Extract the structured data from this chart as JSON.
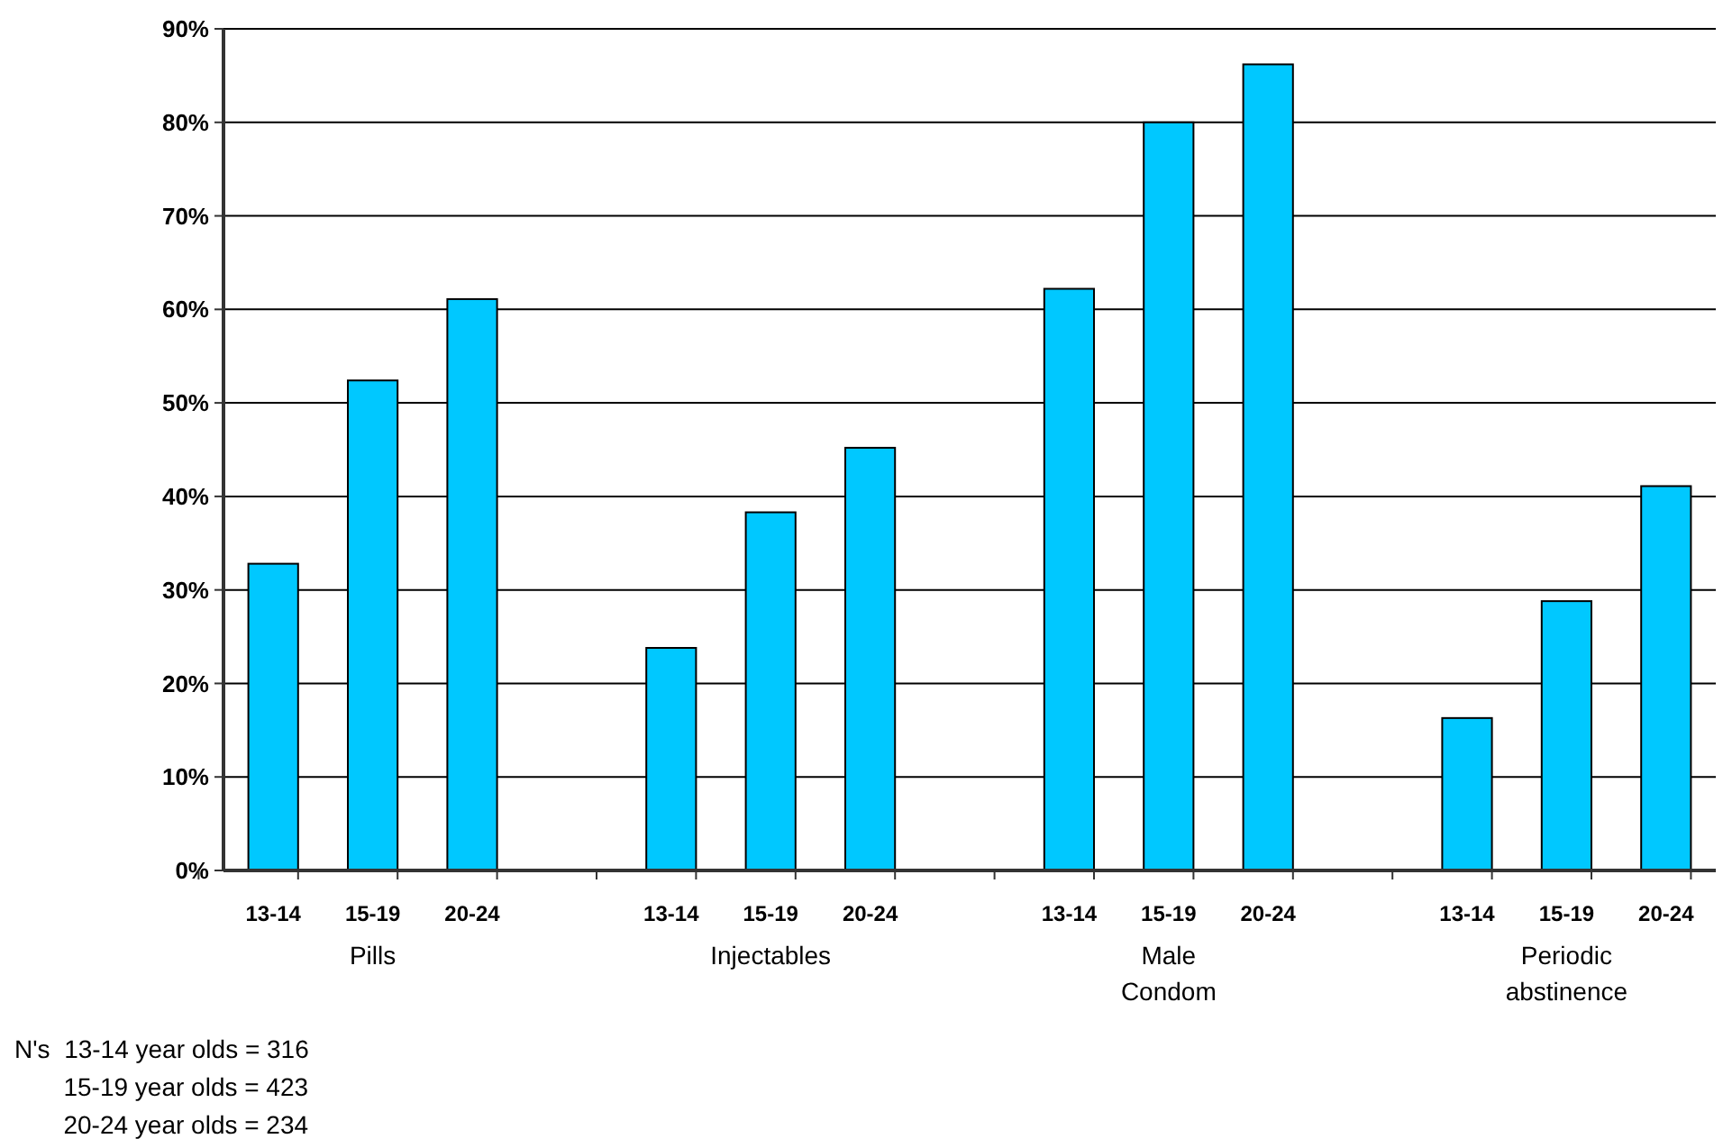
{
  "chart_data": {
    "type": "bar",
    "categories": [
      "13-14",
      "15-19",
      "20-24",
      null,
      "13-14",
      "15-19",
      "20-24",
      null,
      "13-14",
      "15-19",
      "20-24",
      null,
      "13-14",
      "15-19",
      "20-24"
    ],
    "values": [
      32.8,
      52.4,
      61.1,
      null,
      23.8,
      38.3,
      45.2,
      null,
      62.2,
      80.0,
      86.2,
      null,
      16.3,
      28.8,
      41.1
    ],
    "color": "#00c8ff",
    "ylim": [
      0,
      90
    ],
    "yticks": [
      {
        "value": 0,
        "label": "0%"
      },
      {
        "value": 10,
        "label": "10%"
      },
      {
        "value": 20,
        "label": "20%"
      },
      {
        "value": 30,
        "label": "30%"
      },
      {
        "value": 40,
        "label": "40%"
      },
      {
        "value": 50,
        "label": "50%"
      },
      {
        "value": 60,
        "label": "60%"
      },
      {
        "value": 70,
        "label": "70%"
      },
      {
        "value": 80,
        "label": "80%"
      },
      {
        "value": 90,
        "label": "90%"
      }
    ],
    "grid": "y",
    "annotations": [
      "Pills",
      "Injectables",
      "Male\nCondom",
      "Periodic\nabstinence",
      "N's  13-14 year olds = 316\n       15-19 year olds = 423\n       20-24 year olds = 234"
    ]
  }
}
